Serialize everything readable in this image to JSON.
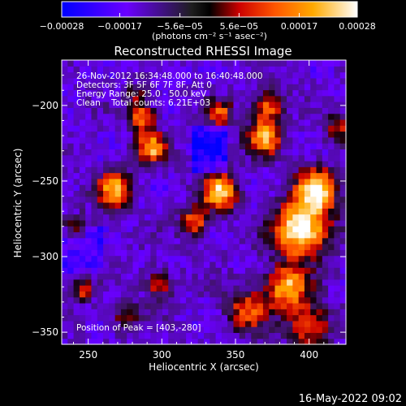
{
  "chart_data": {
    "type": "heatmap",
    "title": "Reconstructed RHESSI Image",
    "xlabel": "Heliocentric X (arcsec)",
    "ylabel": "Heliocentric Y (arcsec)",
    "xlim": [
      232,
      425
    ],
    "ylim": [
      -358,
      -170
    ],
    "x_ticks": [
      250,
      300,
      350,
      400
    ],
    "y_ticks": [
      -350,
      -300,
      -250,
      -200
    ],
    "colorbar": {
      "range": [
        -0.00028,
        0.00028
      ],
      "tick_values": [
        -0.00028,
        -0.00017,
        -5.6e-05,
        5.6e-05,
        0.00017,
        0.00028
      ],
      "tick_labels": [
        "-0.00028",
        "-0.00017",
        "-5.6e-05",
        "5.6e-05",
        "0.00017",
        "0.00028"
      ],
      "unit_label": "(photons cm⁻² s⁻¹ asec⁻²)"
    },
    "annotations": [
      "26-Nov-2012 16:34:48.000 to 16:40:48.000",
      "Detectors: 3F 5F 6F 7F 8F, Att 0",
      "Energy Range: 25.0 - 50.0 keV",
      "Clean    Total counts: 6.21E+03"
    ],
    "peak_label": "Position of Peak = [403,-280]",
    "peak": [
      403,
      -280
    ],
    "hotspots": [
      {
        "x": 395,
        "y": -282,
        "v": 1.0,
        "r": 18
      },
      {
        "x": 405,
        "y": -255,
        "v": 0.85,
        "r": 14
      },
      {
        "x": 385,
        "y": -320,
        "v": 0.75,
        "r": 14
      },
      {
        "x": 400,
        "y": -345,
        "v": 0.6,
        "r": 14
      },
      {
        "x": 340,
        "y": -257,
        "v": 0.8,
        "r": 12
      },
      {
        "x": 370,
        "y": -220,
        "v": 0.7,
        "r": 12
      },
      {
        "x": 372,
        "y": -200,
        "v": 0.55,
        "r": 10
      },
      {
        "x": 268,
        "y": -255,
        "v": 0.7,
        "r": 12
      },
      {
        "x": 293,
        "y": -228,
        "v": 0.7,
        "r": 10
      },
      {
        "x": 287,
        "y": -208,
        "v": 0.6,
        "r": 9
      },
      {
        "x": 322,
        "y": -277,
        "v": 0.55,
        "r": 10
      },
      {
        "x": 340,
        "y": -205,
        "v": 0.5,
        "r": 9
      },
      {
        "x": 358,
        "y": -335,
        "v": 0.5,
        "r": 14
      },
      {
        "x": 298,
        "y": -318,
        "v": 0.45,
        "r": 10
      },
      {
        "x": 245,
        "y": -322,
        "v": 0.45,
        "r": 8
      },
      {
        "x": 275,
        "y": -340,
        "v": 0.35,
        "r": 10
      },
      {
        "x": 243,
        "y": -280,
        "v": 0.4,
        "r": 8
      },
      {
        "x": 420,
        "y": -215,
        "v": 0.45,
        "r": 9
      },
      {
        "x": 283,
        "y": -193,
        "v": 0.35,
        "r": 8
      }
    ]
  },
  "footer": {
    "timestamp": "16-May-2022 09:02"
  }
}
